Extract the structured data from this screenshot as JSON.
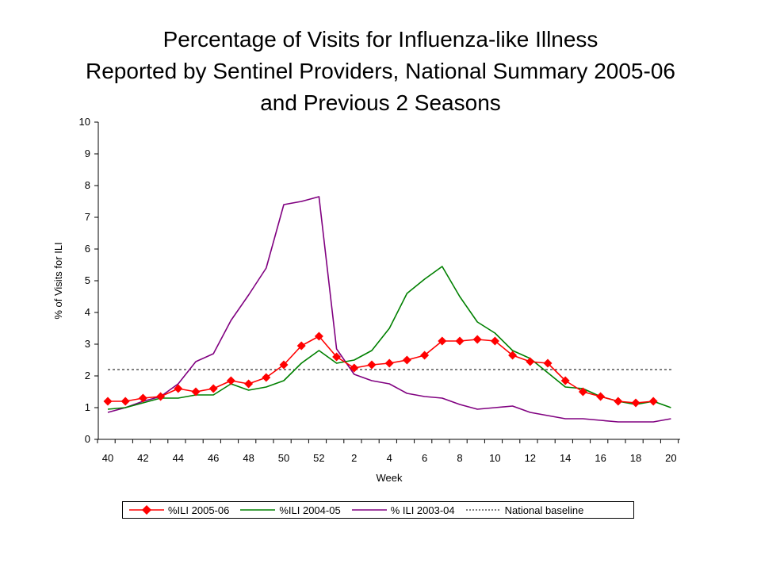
{
  "title_lines": [
    "Percentage of Visits for Influenza-like Illness",
    "Reported by Sentinel Providers, National Summary 2005-06",
    "and Previous 2 Seasons"
  ],
  "chart_data": {
    "type": "line",
    "title": "Percentage of Visits for Influenza-like Illness Reported by Sentinel Providers, National Summary 2005-06 and Previous 2 Seasons",
    "xlabel": "Week",
    "ylabel": "% of Visits for ILI",
    "ylim": [
      0,
      10
    ],
    "yticks": [
      "0",
      "1",
      "2",
      "3",
      "4",
      "5",
      "6",
      "7",
      "8",
      "9",
      "10"
    ],
    "x": [
      "40",
      "41",
      "42",
      "43",
      "44",
      "45",
      "46",
      "47",
      "48",
      "49",
      "50",
      "51",
      "52",
      "1",
      "2",
      "3",
      "4",
      "5",
      "6",
      "7",
      "8",
      "9",
      "10",
      "11",
      "12",
      "13",
      "14",
      "15",
      "16",
      "17",
      "18",
      "19",
      "20"
    ],
    "xtick_labels": [
      "40",
      "42",
      "44",
      "46",
      "48",
      "50",
      "52",
      "2",
      "4",
      "6",
      "8",
      "10",
      "12",
      "14",
      "16",
      "18",
      "20"
    ],
    "grid": false,
    "legend_position": "bottom",
    "series": [
      {
        "name": "%ILI 2005-06",
        "color": "#ff0000",
        "marker": "diamond",
        "values": [
          1.2,
          1.2,
          1.3,
          1.35,
          1.6,
          1.5,
          1.6,
          1.85,
          1.75,
          1.95,
          2.35,
          2.95,
          3.25,
          2.6,
          2.25,
          2.35,
          2.4,
          2.5,
          2.65,
          3.1,
          3.1,
          3.15,
          3.1,
          2.65,
          2.45,
          2.4,
          1.85,
          1.5,
          1.35,
          1.2,
          1.15,
          1.2,
          null
        ]
      },
      {
        "name": "%ILI 2004-05",
        "color": "#008000",
        "marker": "none",
        "values": [
          0.95,
          1.0,
          1.15,
          1.3,
          1.3,
          1.4,
          1.4,
          1.75,
          1.55,
          1.65,
          1.85,
          2.4,
          2.8,
          2.4,
          2.5,
          2.8,
          3.5,
          4.6,
          5.05,
          5.45,
          4.5,
          3.7,
          3.35,
          2.8,
          2.55,
          2.1,
          1.65,
          1.6,
          1.35,
          1.2,
          1.1,
          1.2,
          1.0
        ]
      },
      {
        "name": "% ILI 2003-04",
        "color": "#800080",
        "marker": "none",
        "values": [
          0.85,
          1.0,
          1.2,
          1.35,
          1.75,
          2.45,
          2.7,
          3.75,
          4.55,
          5.4,
          7.4,
          7.5,
          7.65,
          2.85,
          2.05,
          1.85,
          1.75,
          1.45,
          1.35,
          1.3,
          1.1,
          0.95,
          1.0,
          1.05,
          0.85,
          0.75,
          0.65,
          0.65,
          0.6,
          0.55,
          0.55,
          0.55,
          0.65
        ]
      }
    ],
    "baseline": {
      "name": "National baseline",
      "value": 2.2,
      "style": "dashed",
      "color": "#000000"
    }
  }
}
